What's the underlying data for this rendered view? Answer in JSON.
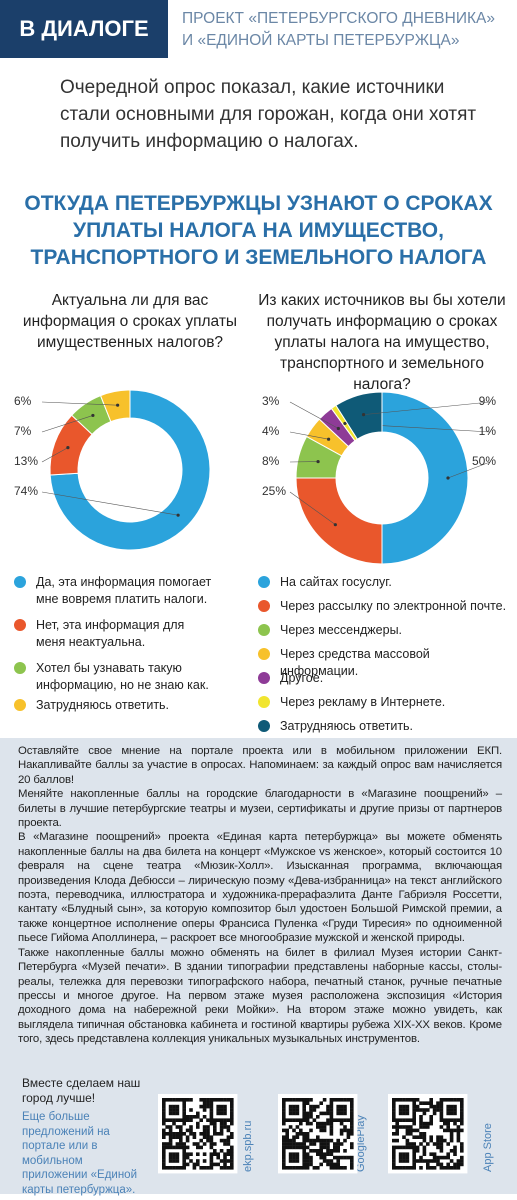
{
  "header": {
    "badge": "В ДИАЛОГЕ",
    "project_lines": [
      "ПРОЕКТ «ПЕТЕРБУРГСКОГО ДНЕВНИКА»",
      "И «ЕДИНОЙ КАРТЫ ПЕТЕРБУРЖЦА»"
    ]
  },
  "intro": "Очередной опрос показал, какие источники стали основными для горожан, когда они хотят получить информацию о налогах.",
  "headline": "ОТКУДА ПЕТЕРБУРЖЦЫ УЗНАЮТ О СРОКАХ УПЛАТЫ НАЛОГА НА ИМУЩЕСТВО, ТРАНСПОРТНОГО И ЗЕМЕЛЬНОГО НАЛОГА",
  "chart_data": [
    {
      "type": "donut",
      "title": "Актуальна ли для вас информация о сроках уплаты имущественных налогов?",
      "categories": [
        "Да, эта информация помогает мне вовремя платить налоги.",
        "Нет, эта информация для меня неактуальна.",
        "Хотел бы узнавать такую информацию, но не знаю как.",
        "Затрудняюсь ответить."
      ],
      "values": [
        74,
        13,
        7,
        6
      ],
      "value_labels": [
        "74%",
        "13%",
        "7%",
        "6%"
      ],
      "colors": [
        "#2ba3dc",
        "#e9572c",
        "#8dc44e",
        "#f7c12b"
      ]
    },
    {
      "type": "donut",
      "title": "Из каких источников вы бы хотели получать информацию о сроках уплаты налога на имущество, транспортного и земельного налога?",
      "categories": [
        "На сайтах госуслуг.",
        "Через рассылку по электронной почте.",
        "Через мессенджеры.",
        "Через средства массовой информации.",
        "Другое.",
        "Через рекламу в Интернете.",
        "Затрудняюсь ответить."
      ],
      "values": [
        50,
        25,
        8,
        4,
        3,
        1,
        9
      ],
      "value_labels": [
        "50%",
        "25%",
        "8%",
        "4%",
        "3%",
        "1%",
        "9%"
      ],
      "colors": [
        "#2ba3dc",
        "#e9572c",
        "#8dc44e",
        "#f7c12b",
        "#8e3b97",
        "#f1e52f",
        "#0f5a77"
      ]
    }
  ],
  "footer": {
    "paragraphs": [
      "Оставляйте свое мнение на портале проекта или в мобильном приложении ЕКП. Накапливайте баллы за участие в опросах. Напоминаем: за каждый опрос вам начисляется 20 баллов!",
      "Меняйте накопленные баллы на городские благодарности в «Магазине поощрений» – билеты в лучшие петербургские театры и музеи, сертификаты и другие призы от партнеров проекта.",
      "В «Магазине поощрений» проекта «Единая карта петербуржца» вы можете обменять накопленные баллы на два билета на концерт «Мужское vs женское», который состоится 10 февраля на сцене театра «Мюзик-Холл». Изысканная программа, включающая произведения Клода Дебюсси – лирическую поэму «Дева-избранница» на текст английского поэта, переводчика, иллюстратора и художника-прерафаэлита Данте Габриэля Россетти, кантату «Блудный сын», за которую композитор был удостоен Большой Римской премии, а также концертное исполнение оперы Франсиса Пуленка «Груди Тиресия» по одноименной пьесе Гийома Аполлинера, – раскроет все многообразие мужской и женской природы.",
      "Также накопленные баллы можно обменять на билет в филиал Музея истории Санкт-Петербурга «Музей печати». В здании типографии представлены наборные кассы, столы-реалы, тележка для перевозки типографского набора, печатный станок, ручные печатные прессы и многое другое. На первом этаже музея расположена экспозиция «История доходного дома на набережной реки Мойки». На втором этаже можно увидеть, как выглядела типичная обстановка кабинета и гостиной квартиры рубежа XIX-XX веков. Кроме того, здесь представлена коллекция уникальных музыкальных инструментов."
    ],
    "closing": "Вместе сделаем наш город лучше!",
    "more": "Еще больше предложений на портале или в мобильном приложении «Единой карты петербуржца».",
    "qr_labels": [
      "ekp.spb.ru",
      "GooglePlay",
      "App Store"
    ]
  }
}
